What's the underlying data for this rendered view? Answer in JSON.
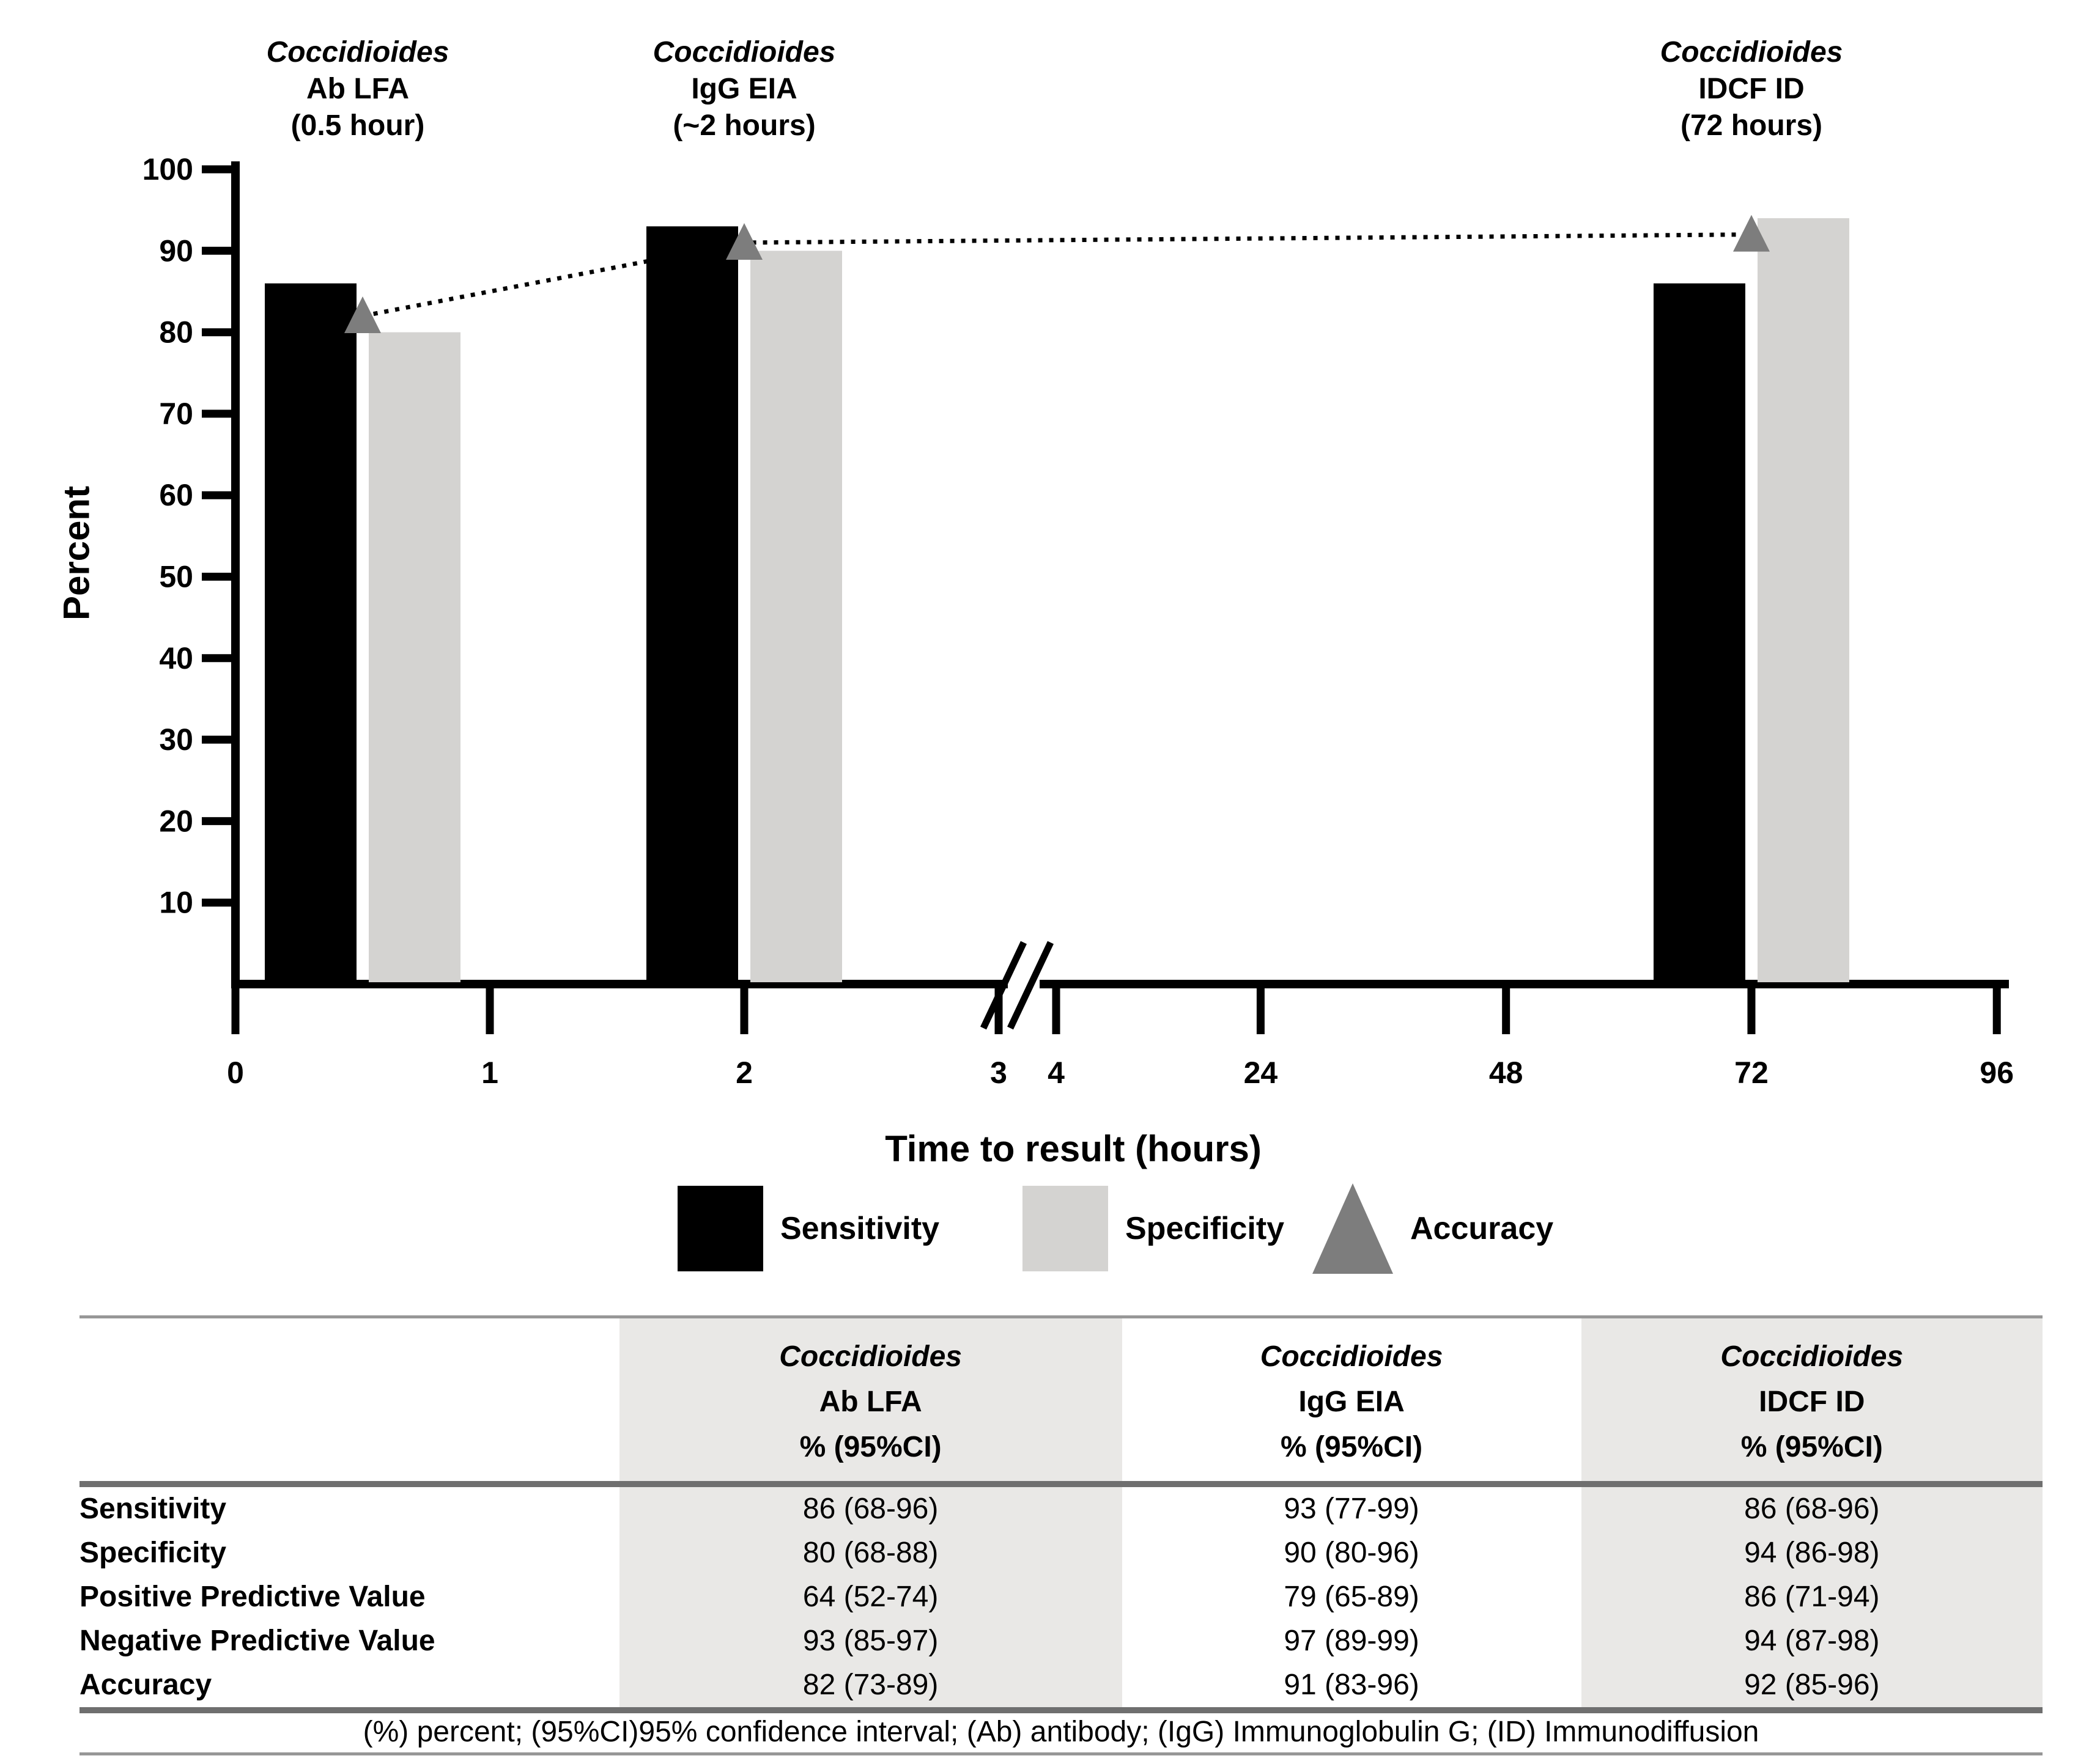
{
  "chart_data": {
    "type": "bar",
    "title": "",
    "ylabel": "Percent",
    "xlabel": "Time to result (hours)",
    "ylim": [
      0,
      100
    ],
    "yticks": [
      10,
      20,
      30,
      40,
      50,
      60,
      70,
      80,
      90,
      100
    ],
    "x_axis": {
      "left_ticks": [
        0,
        1,
        2,
        3
      ],
      "right_ticks": [
        4,
        24,
        48,
        72,
        96
      ],
      "axis_break_between": "3 and 4",
      "grid": "off"
    },
    "series_names": [
      "Sensitivity",
      "Specificity",
      "Accuracy"
    ],
    "groups": [
      {
        "label_lines": [
          "Coccidioides",
          "Ab LFA",
          "(0.5 hour)"
        ],
        "hour": 0.5,
        "sensitivity": 86,
        "specificity": 80,
        "accuracy": 82
      },
      {
        "label_lines": [
          "Coccidioides",
          "IgG EIA",
          "(~2 hours)"
        ],
        "hour": 2,
        "sensitivity": 93,
        "specificity": 90,
        "accuracy": 91
      },
      {
        "label_lines": [
          "Coccidioides",
          "IDCF ID",
          "(72 hours)"
        ],
        "hour": 72,
        "sensitivity": 86,
        "specificity": 94,
        "accuracy": 92
      }
    ],
    "legend": [
      {
        "label": "Sensitivity",
        "swatch": "black-bar"
      },
      {
        "label": "Specificity",
        "swatch": "gray-bar"
      },
      {
        "label": "Accuracy",
        "swatch": "gray-triangle"
      }
    ],
    "legend_position": "below",
    "colors": {
      "sensitivity_bar": "#000000",
      "specificity_bar": "#d4d3d1",
      "accuracy_marker": "#7d7d7d",
      "dotted_line": "#000000",
      "table_shade": "#e9e8e6",
      "rule_gray": "#6f6f6f"
    }
  },
  "table": {
    "col_headers": [
      [
        "",
        "",
        ""
      ],
      [
        "Coccidioides",
        "Ab LFA",
        "% (95%CI)"
      ],
      [
        "Coccidioides",
        "IgG EIA",
        "% (95%CI)"
      ],
      [
        "Coccidioides",
        "IDCF ID",
        "% (95%CI)"
      ]
    ],
    "rows": [
      {
        "label": "Sensitivity",
        "values": [
          "86 (68-96)",
          "93 (77-99)",
          "86 (68-96)"
        ]
      },
      {
        "label": "Specificity",
        "values": [
          "80 (68-88)",
          "90 (80-96)",
          "94 (86-98)"
        ]
      },
      {
        "label": "Positive Predictive Value",
        "values": [
          "64 (52-74)",
          "79 (65-89)",
          "86 (71-94)"
        ]
      },
      {
        "label": "Negative Predictive Value",
        "values": [
          "93 (85-97)",
          "97 (89-99)",
          "94 (87-98)"
        ]
      },
      {
        "label": "Accuracy",
        "values": [
          "82 (73-89)",
          "91 (83-96)",
          "92 (85-96)"
        ]
      }
    ],
    "footnote": "(%) percent; (95%CI)95% confidence interval; (Ab) antibody; (IgG) Immunoglobulin G; (ID) Immunodiffusion"
  }
}
